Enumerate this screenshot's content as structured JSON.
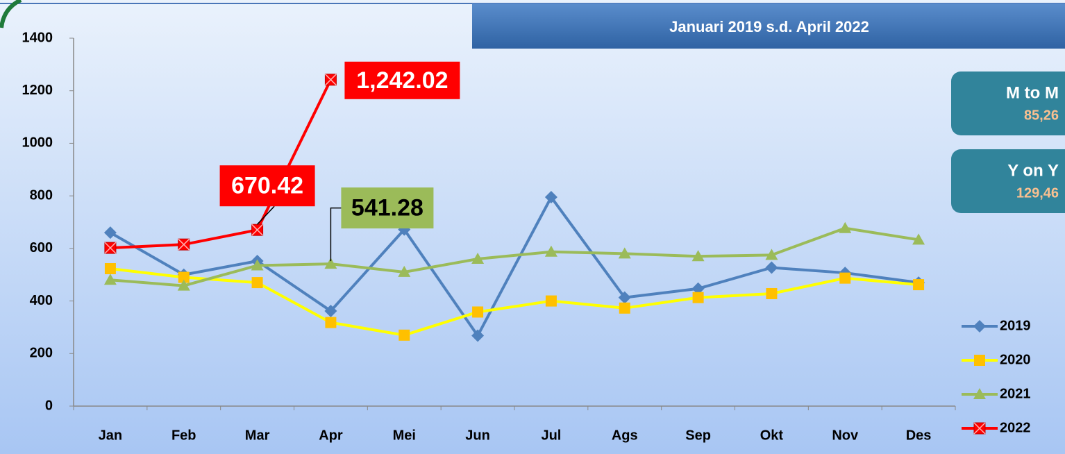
{
  "chart_data": {
    "type": "line",
    "title": "Januari 2019 s.d. April 2022",
    "panels": [
      {
        "label": "M to M",
        "value": "85,26"
      },
      {
        "label": "Y on Y",
        "value": "129,46"
      }
    ],
    "categories": [
      "Jan",
      "Feb",
      "Mar",
      "Apr",
      "Mei",
      "Jun",
      "Jul",
      "Ags",
      "Sep",
      "Okt",
      "Nov",
      "Des"
    ],
    "series": [
      {
        "name": "2019",
        "color": "#4f81bd",
        "marker": "diamond",
        "marker_color": "#4f81bd",
        "values": [
          660,
          500,
          552,
          362,
          672,
          268,
          795,
          413,
          447,
          527,
          507,
          470
        ]
      },
      {
        "name": "2020",
        "color": "#ffff00",
        "marker": "square",
        "marker_color": "#ffc000",
        "values": [
          523,
          490,
          470,
          318,
          270,
          358,
          400,
          373,
          413,
          428,
          487,
          462
        ]
      },
      {
        "name": "2021",
        "color": "#9bbb59",
        "marker": "triangle",
        "marker_color": "#9bbb59",
        "values": [
          480,
          458,
          535,
          541.28,
          510,
          560,
          587,
          580,
          570,
          575,
          677,
          633
        ],
        "value_labels": [
          null,
          null,
          null,
          "541.28",
          null,
          null,
          null,
          null,
          null,
          null,
          null,
          null
        ]
      },
      {
        "name": "2022",
        "color": "#ff0000",
        "marker": "square-x",
        "marker_color": "#ff0000",
        "values": [
          602,
          615,
          670.42,
          1242.02,
          null,
          null,
          null,
          null,
          null,
          null,
          null,
          null
        ],
        "value_labels": [
          null,
          null,
          "670.42",
          "1,242.02",
          null,
          null,
          null,
          null,
          null,
          null,
          null,
          null
        ]
      }
    ],
    "ylim": [
      0,
      1400
    ],
    "yticks": [
      0,
      200,
      400,
      600,
      800,
      1000,
      1200,
      1400
    ],
    "grid": false,
    "legend": "lower right"
  }
}
